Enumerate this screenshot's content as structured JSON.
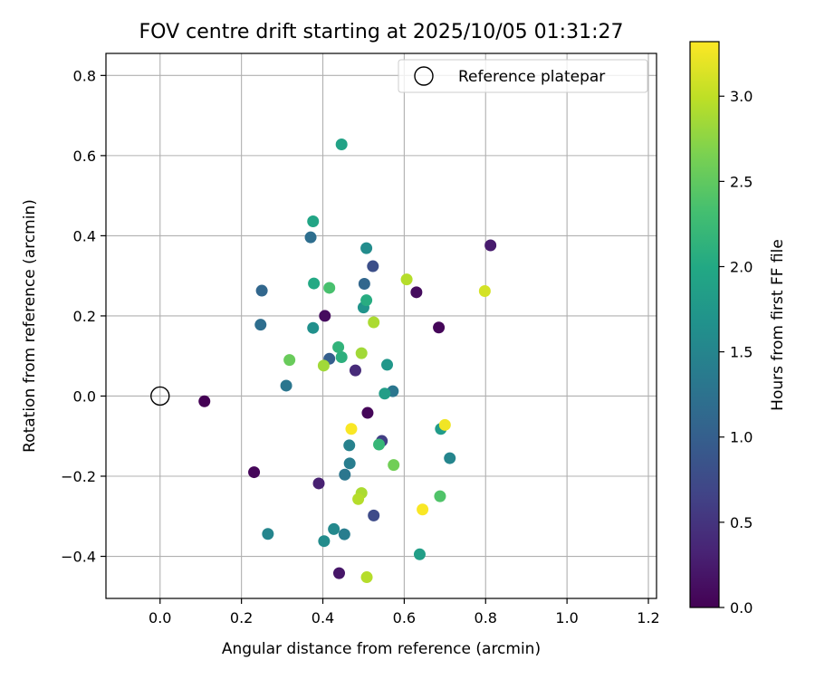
{
  "chart_data": {
    "type": "scatter",
    "title": "FOV centre drift starting at 2025/10/05 01:31:27",
    "xlabel": "Angular distance from reference (arcmin)",
    "ylabel": "Rotation from reference (arcmin)",
    "xlim": [
      -0.133,
      1.22
    ],
    "ylim": [
      -0.505,
      0.855
    ],
    "xticks": [
      0.0,
      0.2,
      0.4,
      0.6,
      0.8,
      1.0,
      1.2
    ],
    "xtick_labels": [
      "0.0",
      "0.2",
      "0.4",
      "0.6",
      "0.8",
      "1.0",
      "1.2"
    ],
    "yticks": [
      -0.4,
      -0.2,
      0.0,
      0.2,
      0.4,
      0.6,
      0.8
    ],
    "ytick_labels": [
      "−0.4",
      "−0.2",
      "0.0",
      "0.2",
      "0.4",
      "0.6",
      "0.8"
    ],
    "grid": true,
    "legend": {
      "location": "top-right",
      "entries": [
        "Reference platepar"
      ]
    },
    "reference_point": {
      "x": 0.0,
      "y": 0.0,
      "label": "Reference platepar"
    },
    "colorbar": {
      "label": "Hours from first FF file",
      "range": [
        0.0,
        3.32
      ],
      "ticks": [
        0.0,
        0.5,
        1.0,
        1.5,
        2.0,
        2.5,
        3.0
      ],
      "tick_labels": [
        "0.0",
        "0.5",
        "1.0",
        "1.5",
        "2.0",
        "2.5",
        "3.0"
      ],
      "colormap": "viridis"
    },
    "points": [
      {
        "x": 0.109,
        "y": -0.013,
        "c": 0.0
      },
      {
        "x": 0.231,
        "y": -0.19,
        "c": 0.05
      },
      {
        "x": 0.405,
        "y": 0.2,
        "c": 0.1
      },
      {
        "x": 0.39,
        "y": -0.218,
        "c": 0.3
      },
      {
        "x": 0.44,
        "y": -0.442,
        "c": 0.2
      },
      {
        "x": 0.51,
        "y": -0.042,
        "c": 0.05
      },
      {
        "x": 0.48,
        "y": 0.064,
        "c": 0.4
      },
      {
        "x": 0.63,
        "y": 0.259,
        "c": 0.1
      },
      {
        "x": 0.685,
        "y": 0.171,
        "c": 0.05
      },
      {
        "x": 0.812,
        "y": 0.376,
        "c": 0.25
      },
      {
        "x": 0.545,
        "y": -0.112,
        "c": 0.6
      },
      {
        "x": 0.525,
        "y": -0.298,
        "c": 0.75
      },
      {
        "x": 0.523,
        "y": 0.324,
        "c": 0.8
      },
      {
        "x": 0.416,
        "y": 0.093,
        "c": 1.0
      },
      {
        "x": 0.25,
        "y": 0.263,
        "c": 1.1
      },
      {
        "x": 0.247,
        "y": 0.178,
        "c": 1.2
      },
      {
        "x": 0.37,
        "y": 0.396,
        "c": 1.2
      },
      {
        "x": 0.502,
        "y": 0.28,
        "c": 1.1
      },
      {
        "x": 0.31,
        "y": 0.026,
        "c": 1.3
      },
      {
        "x": 0.454,
        "y": -0.196,
        "c": 1.3
      },
      {
        "x": 0.466,
        "y": -0.168,
        "c": 1.4
      },
      {
        "x": 0.465,
        "y": -0.123,
        "c": 1.45
      },
      {
        "x": 0.572,
        "y": 0.012,
        "c": 1.3
      },
      {
        "x": 0.265,
        "y": -0.344,
        "c": 1.5
      },
      {
        "x": 0.403,
        "y": -0.362,
        "c": 1.6
      },
      {
        "x": 0.427,
        "y": -0.332,
        "c": 1.55
      },
      {
        "x": 0.453,
        "y": -0.345,
        "c": 1.4
      },
      {
        "x": 0.712,
        "y": -0.155,
        "c": 1.5
      },
      {
        "x": 0.507,
        "y": 0.369,
        "c": 1.6
      },
      {
        "x": 0.376,
        "y": 0.17,
        "c": 1.65
      },
      {
        "x": 0.5,
        "y": 0.221,
        "c": 1.7
      },
      {
        "x": 0.558,
        "y": 0.078,
        "c": 1.75
      },
      {
        "x": 0.552,
        "y": 0.006,
        "c": 1.85
      },
      {
        "x": 0.69,
        "y": -0.082,
        "c": 1.8
      },
      {
        "x": 0.638,
        "y": -0.395,
        "c": 1.85
      },
      {
        "x": 0.446,
        "y": 0.628,
        "c": 1.9
      },
      {
        "x": 0.376,
        "y": 0.436,
        "c": 1.95
      },
      {
        "x": 0.378,
        "y": 0.281,
        "c": 2.0
      },
      {
        "x": 0.507,
        "y": 0.239,
        "c": 2.05
      },
      {
        "x": 0.446,
        "y": 0.097,
        "c": 2.1
      },
      {
        "x": 0.438,
        "y": 0.122,
        "c": 2.15
      },
      {
        "x": 0.538,
        "y": -0.121,
        "c": 2.2
      },
      {
        "x": 0.416,
        "y": 0.27,
        "c": 2.35
      },
      {
        "x": 0.688,
        "y": -0.25,
        "c": 2.4
      },
      {
        "x": 0.318,
        "y": 0.09,
        "c": 2.55
      },
      {
        "x": 0.574,
        "y": -0.172,
        "c": 2.6
      },
      {
        "x": 0.402,
        "y": 0.076,
        "c": 2.85
      },
      {
        "x": 0.495,
        "y": 0.107,
        "c": 2.85
      },
      {
        "x": 0.525,
        "y": 0.184,
        "c": 2.9
      },
      {
        "x": 0.606,
        "y": 0.291,
        "c": 2.95
      },
      {
        "x": 0.495,
        "y": -0.242,
        "c": 2.9
      },
      {
        "x": 0.487,
        "y": -0.257,
        "c": 2.95
      },
      {
        "x": 0.508,
        "y": -0.452,
        "c": 2.95
      },
      {
        "x": 0.47,
        "y": -0.082,
        "c": 3.3
      },
      {
        "x": 0.645,
        "y": -0.283,
        "c": 3.3
      },
      {
        "x": 0.7,
        "y": -0.072,
        "c": 3.25
      },
      {
        "x": 0.798,
        "y": 0.262,
        "c": 3.1
      }
    ]
  }
}
